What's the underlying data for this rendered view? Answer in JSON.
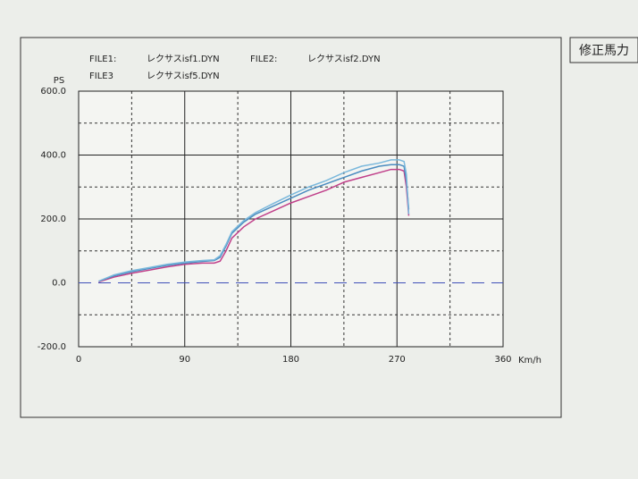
{
  "chart_data": {
    "type": "line",
    "badge": "修正馬力",
    "y_label": "PS",
    "x_label": "Km/h",
    "x": [
      17,
      30,
      45,
      60,
      75,
      90,
      105,
      115,
      120,
      125,
      130,
      140,
      150,
      165,
      180,
      195,
      210,
      225,
      240,
      255,
      265,
      272,
      276,
      278,
      280
    ],
    "series": [
      {
        "file": "FILE1:",
        "name": "レクサスisf1.DYN",
        "color": "#c0408a",
        "values": [
          3,
          18,
          30,
          40,
          50,
          58,
          62,
          62,
          68,
          100,
          140,
          175,
          200,
          225,
          250,
          270,
          290,
          315,
          330,
          345,
          355,
          355,
          350,
          300,
          210
        ]
      },
      {
        "file": "FILE2:",
        "name": "レクサスisf2.DYN",
        "color": "#4a8cc0",
        "values": [
          5,
          22,
          35,
          45,
          55,
          62,
          67,
          70,
          80,
          115,
          155,
          190,
          215,
          240,
          265,
          290,
          310,
          330,
          350,
          365,
          370,
          370,
          365,
          320,
          230
        ]
      },
      {
        "file": "FILE3",
        "name": "レクサスisf5.DYN",
        "color": "#7ab8dc",
        "values": [
          5,
          25,
          38,
          48,
          58,
          65,
          70,
          72,
          85,
          120,
          160,
          195,
          220,
          248,
          275,
          300,
          320,
          345,
          365,
          375,
          385,
          385,
          380,
          340,
          215
        ]
      }
    ],
    "xlim": [
      0,
      360
    ],
    "xticks": [
      0,
      90,
      180,
      270,
      360
    ],
    "minor_xticks": [
      45,
      135,
      225,
      315
    ],
    "ylim": [
      -200,
      600
    ],
    "yticks": [
      {
        "value": -200,
        "label": "-200.0"
      },
      {
        "value": 0,
        "label": "0.0"
      },
      {
        "value": 200,
        "label": "200.0"
      },
      {
        "value": 400,
        "label": "400.0"
      },
      {
        "value": 600,
        "label": "600.0"
      }
    ],
    "minor_yticks": [
      -100,
      100,
      300,
      500
    ],
    "grid": true,
    "zero_line_color": "#4050b8"
  }
}
